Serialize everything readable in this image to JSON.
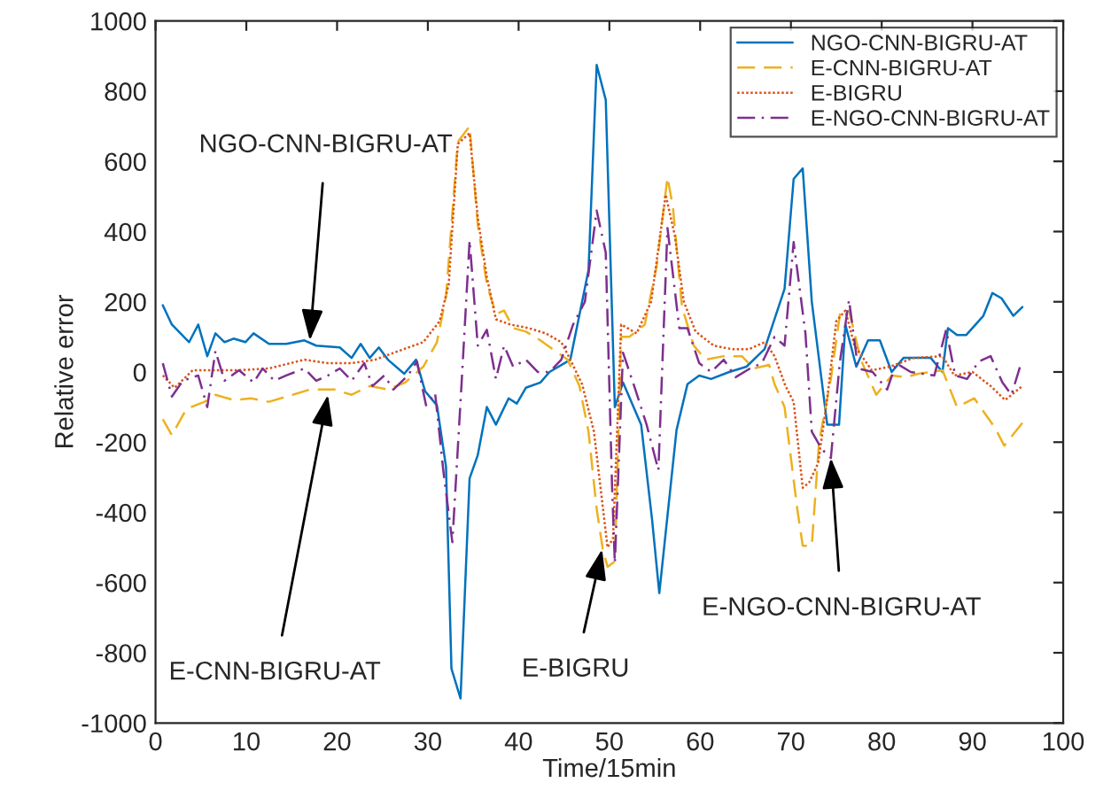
{
  "chart_data": {
    "type": "line",
    "xlabel": "Time/15min",
    "ylabel": "Relative error",
    "xlim": [
      0,
      100
    ],
    "xticks": [
      0,
      10,
      20,
      30,
      40,
      50,
      60,
      70,
      80,
      90,
      100
    ],
    "ylim": [
      -1000,
      1000
    ],
    "yticks": [
      -1000,
      -800,
      -600,
      -400,
      -200,
      0,
      200,
      400,
      600,
      800,
      1000
    ],
    "grid": false,
    "legend": "top right",
    "series": [
      {
        "name": "NGO-CNN-BIGRU-AT",
        "color": "#0072bd",
        "line_style": "solid",
        "x": [
          0.8,
          1.8,
          3.7,
          4.7,
          5.7,
          6.6,
          7.6,
          8.6,
          9.9,
          10.8,
          12.5,
          14.4,
          16.4,
          17.7,
          20.3,
          21.6,
          22.6,
          23.6,
          24.6,
          25.6,
          27.4,
          28.7,
          29.7,
          31,
          32,
          32.6,
          33.6,
          34.6,
          35.5,
          36.5,
          37.5,
          38.9,
          39.8,
          40.8,
          42.4,
          43.4,
          45.7,
          47.7,
          48.6,
          49.6,
          50.6,
          51.5,
          53.5,
          54.7,
          55.5,
          57.4,
          58.6,
          59.9,
          61.2,
          63.2,
          65.1,
          67.1,
          69.3,
          70.3,
          71.3,
          72.3,
          74,
          75.3,
          76,
          77.2,
          78.5,
          79.8,
          81.1,
          82.4,
          85.4,
          86.7,
          87.3,
          88.3,
          89.3,
          91.2,
          92.2,
          93.2,
          94.5,
          95.5
        ],
        "values": [
          190,
          135,
          85,
          135,
          45,
          110,
          85,
          95,
          85,
          110,
          80,
          80,
          90,
          75,
          70,
          40,
          80,
          40,
          70,
          35,
          -5,
          35,
          -55,
          -95,
          -270,
          -845,
          -930,
          -303,
          -237,
          -100,
          -150,
          -75,
          -90,
          -45,
          -30,
          0,
          35,
          290,
          875,
          775,
          -100,
          -30,
          -150,
          -420,
          -630,
          -165,
          -35,
          -10,
          -20,
          0,
          15,
          65,
          237,
          550,
          580,
          200,
          -150,
          -150,
          135,
          15,
          90,
          90,
          0,
          40,
          40,
          0,
          125,
          105,
          105,
          160,
          225,
          210,
          160,
          185
        ]
      },
      {
        "name": "E-CNN-BIGRU-AT",
        "color": "#edb120",
        "line_style": "dashed",
        "x": [
          0.8,
          1.8,
          3.4,
          5.4,
          6.6,
          8.6,
          10.5,
          12.5,
          15.1,
          17,
          19.7,
          21.6,
          23.6,
          25.6,
          27.5,
          29.5,
          31,
          32,
          33.3,
          34.6,
          35.5,
          36.5,
          37.5,
          38.4,
          39.4,
          40.8,
          42.4,
          44,
          45.4,
          46.7,
          47.7,
          48.6,
          49.3,
          49.8,
          50.6,
          51.3,
          52.2,
          53.9,
          55.2,
          56.4,
          57,
          58,
          59.3,
          60.6,
          62.6,
          64.6,
          65.9,
          67.6,
          68.2,
          69.3,
          70.7,
          71.3,
          72.3,
          73.1,
          74.4,
          75.4,
          76.4,
          77.7,
          79.4,
          81.1,
          82.7,
          84,
          86.7,
          88.3,
          90.2,
          92.5,
          93.5,
          95.5
        ],
        "values": [
          -135,
          -180,
          -105,
          -85,
          -65,
          -80,
          -75,
          -85,
          -65,
          -50,
          -50,
          -65,
          -40,
          -50,
          -30,
          15,
          85,
          215,
          655,
          700,
          420,
          250,
          165,
          175,
          125,
          115,
          90,
          60,
          35,
          -40,
          -170,
          -390,
          -510,
          -555,
          -540,
          100,
          100,
          135,
          300,
          555,
          470,
          185,
          75,
          35,
          45,
          45,
          10,
          20,
          -35,
          -100,
          -390,
          -495,
          -495,
          -200,
          -20,
          165,
          175,
          35,
          -65,
          -10,
          -15,
          -5,
          5,
          -100,
          -75,
          -160,
          -210,
          -145
        ]
      },
      {
        "name": "E-BIGRU",
        "color": "#d95319",
        "line_style": "dotted",
        "x": [
          0.8,
          2.1,
          4.1,
          6.6,
          9.2,
          12.5,
          16.4,
          19,
          21.6,
          24.2,
          26.8,
          29.5,
          31.3,
          32.3,
          33.3,
          34.6,
          35.5,
          36.5,
          37.5,
          39.1,
          41.1,
          43,
          44.7,
          45.7,
          47,
          48.3,
          49.3,
          49.8,
          50.4,
          51.3,
          53,
          54.6,
          56.2,
          57.2,
          58.2,
          59.5,
          61.5,
          63.5,
          65.4,
          67.1,
          68.2,
          69.4,
          70.3,
          71.3,
          72,
          73,
          74,
          75,
          76,
          77,
          78.9,
          80.9,
          83.5,
          86.7,
          88,
          90,
          92,
          93.6,
          95.5
        ],
        "values": [
          -10,
          -45,
          5,
          5,
          5,
          10,
          35,
          25,
          25,
          35,
          60,
          85,
          145,
          250,
          650,
          680,
          440,
          270,
          150,
          135,
          125,
          110,
          85,
          35,
          -35,
          -170,
          -390,
          -500,
          -475,
          135,
          110,
          200,
          505,
          390,
          200,
          115,
          75,
          65,
          65,
          85,
          45,
          -40,
          -85,
          -330,
          -315,
          -260,
          -75,
          145,
          175,
          75,
          5,
          15,
          40,
          45,
          -10,
          0,
          -40,
          -80,
          -40
        ]
      },
      {
        "name": "E-NGO-CNN-BIGRU-AT",
        "color": "#7e2f8e",
        "line_style": "dashdot",
        "x": [
          0.8,
          1.8,
          3,
          4.7,
          5.7,
          6.6,
          7.6,
          9.2,
          10.8,
          11.8,
          13.1,
          14.4,
          16.4,
          17.7,
          19,
          20.3,
          21.6,
          23,
          23.9,
          25.2,
          26.2,
          27.8,
          28.8,
          29.8,
          30.8,
          31.7,
          32.7,
          33.7,
          34.6,
          35.5,
          36.5,
          37.5,
          38.4,
          39.4,
          40.8,
          42.1,
          43.4,
          44.7,
          46,
          47.3,
          48.6,
          49.6,
          50.3,
          50.6,
          51.5,
          52.8,
          54.1,
          55.4,
          56.4,
          57.7,
          58.6,
          59.9,
          61.2,
          62.6,
          63.9,
          65.5,
          66.8,
          68.2,
          69.3,
          70.3,
          71.6,
          72.3,
          73.4,
          74.4,
          75.4,
          76.4,
          77.4,
          79,
          80.6,
          81.6,
          83.2,
          85.8,
          87.1,
          88.1,
          89.4,
          90.7,
          92,
          93.3,
          94.3,
          95.3
        ],
        "values": [
          25,
          -70,
          -25,
          -10,
          -100,
          60,
          -25,
          5,
          -30,
          10,
          -25,
          -10,
          10,
          -25,
          -10,
          10,
          -25,
          25,
          -40,
          -10,
          -50,
          -10,
          30,
          -95,
          -60,
          -280,
          -485,
          -40,
          375,
          75,
          120,
          -20,
          75,
          15,
          35,
          0,
          0,
          35,
          135,
          200,
          460,
          340,
          -330,
          -545,
          55,
          -45,
          -150,
          -280,
          410,
          125,
          125,
          25,
          0,
          35,
          -15,
          10,
          25,
          100,
          75,
          370,
          110,
          -170,
          -220,
          -245,
          30,
          205,
          10,
          0,
          -50,
          25,
          0,
          -10,
          120,
          -10,
          -20,
          30,
          45,
          -30,
          -65,
          20
        ]
      }
    ],
    "annotations": [
      {
        "text": "NGO-CNN-BIGRU-AT",
        "x": 17,
        "y": 90
      },
      {
        "text": "E-CNN-BIGRU-AT",
        "x": 19,
        "y": -65
      },
      {
        "text": "E-BIGRU",
        "x": 49.2,
        "y": -505
      },
      {
        "text": "E-NGO-CNN-BIGRU-AT",
        "x": 74.4,
        "y": -245
      }
    ]
  }
}
